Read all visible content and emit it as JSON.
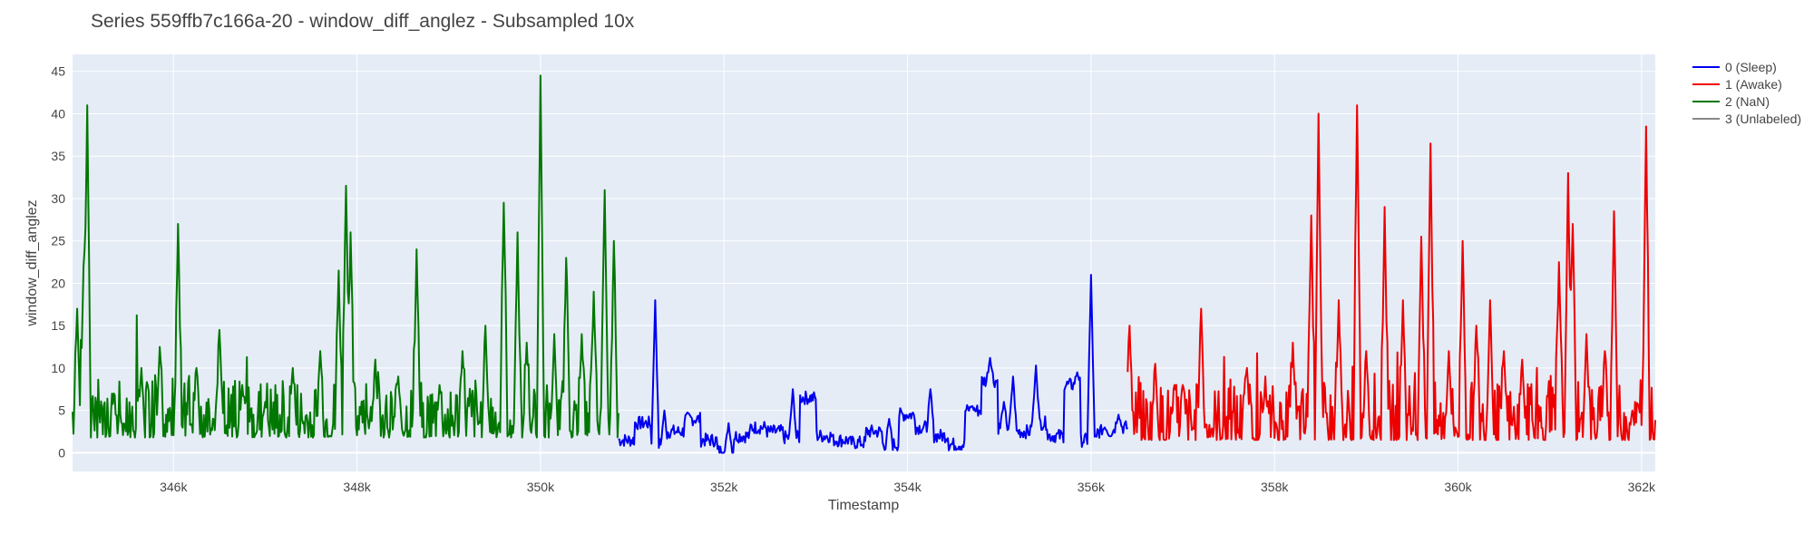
{
  "chart_data": {
    "type": "line",
    "title": "Series 559ffb7c166a-20 - window_diff_anglez - Subsampled 10x",
    "xlabel": "Timestamp",
    "ylabel": "window_diff_anglez",
    "xlim": [
      344900,
      362150
    ],
    "ylim": [
      -2.2,
      47
    ],
    "x_ticks": [
      346000,
      348000,
      350000,
      352000,
      354000,
      356000,
      358000,
      360000,
      362000
    ],
    "x_tick_labels": [
      "346k",
      "348k",
      "350k",
      "352k",
      "354k",
      "356k",
      "358k",
      "360k",
      "362k"
    ],
    "y_ticks": [
      0,
      5,
      10,
      15,
      20,
      25,
      30,
      35,
      40,
      45
    ],
    "y_tick_labels": [
      "0",
      "5",
      "10",
      "15",
      "20",
      "25",
      "30",
      "35",
      "40",
      "45"
    ],
    "grid": true,
    "legend_position": "right",
    "series": [
      {
        "name": "0 (Sleep)",
        "color": "#0000ee",
        "x_range": [
          350850,
          356400
        ],
        "baseline": 2.5,
        "peaks": [
          [
            351250,
            18
          ],
          [
            351350,
            5
          ],
          [
            352050,
            3.5
          ],
          [
            352750,
            7.5
          ],
          [
            353800,
            4
          ],
          [
            354250,
            7.5
          ],
          [
            354700,
            5.5
          ],
          [
            354900,
            11.2
          ],
          [
            355050,
            6
          ],
          [
            355150,
            9
          ],
          [
            355400,
            10.3
          ],
          [
            355850,
            9.5
          ],
          [
            356000,
            21
          ],
          [
            356150,
            3
          ],
          [
            356300,
            4.5
          ]
        ]
      },
      {
        "name": "1 (Awake)",
        "color": "#ee0000",
        "x_range": [
          356400,
          362150
        ],
        "baseline": 1.5,
        "peaks": [
          [
            356420,
            15
          ],
          [
            356700,
            10.5
          ],
          [
            357000,
            8
          ],
          [
            357200,
            17
          ],
          [
            357700,
            10
          ],
          [
            357900,
            8
          ],
          [
            358200,
            13
          ],
          [
            358400,
            28
          ],
          [
            358480,
            40
          ],
          [
            358700,
            18
          ],
          [
            358900,
            41
          ],
          [
            359000,
            12
          ],
          [
            359200,
            29
          ],
          [
            359400,
            18
          ],
          [
            359600,
            25.5
          ],
          [
            359700,
            36.5
          ],
          [
            359900,
            12
          ],
          [
            360050,
            25
          ],
          [
            360200,
            15
          ],
          [
            360350,
            18
          ],
          [
            360500,
            12
          ],
          [
            360700,
            11
          ],
          [
            361100,
            22.5
          ],
          [
            361200,
            33
          ],
          [
            361250,
            27
          ],
          [
            361400,
            14
          ],
          [
            361600,
            12
          ],
          [
            361700,
            28.5
          ],
          [
            361900,
            5
          ],
          [
            362050,
            38.5
          ]
        ]
      },
      {
        "name": "2 (NaN)",
        "color": "#007700",
        "x_range": [
          344900,
          350850
        ],
        "baseline": 1.8,
        "peaks": [
          [
            344950,
            17
          ],
          [
            345020,
            22
          ],
          [
            345060,
            41
          ],
          [
            345350,
            7
          ],
          [
            345650,
            10
          ],
          [
            345850,
            12.5
          ],
          [
            346050,
            27
          ],
          [
            346250,
            10
          ],
          [
            346500,
            14.5
          ],
          [
            346750,
            8
          ],
          [
            347000,
            6
          ],
          [
            347300,
            10
          ],
          [
            347600,
            12
          ],
          [
            347800,
            21.5
          ],
          [
            347880,
            31.5
          ],
          [
            347930,
            26
          ],
          [
            348200,
            11
          ],
          [
            348450,
            9
          ],
          [
            348650,
            24
          ],
          [
            348900,
            8
          ],
          [
            349150,
            12
          ],
          [
            349400,
            15
          ],
          [
            349600,
            29.5
          ],
          [
            349750,
            26
          ],
          [
            349850,
            13
          ],
          [
            350000,
            44.5
          ],
          [
            350150,
            14
          ],
          [
            350280,
            23
          ],
          [
            350450,
            14
          ],
          [
            350580,
            19
          ],
          [
            350700,
            31
          ],
          [
            350800,
            25
          ]
        ]
      },
      {
        "name": "3 (Unlabeled)",
        "color": "#888888",
        "x_range": [],
        "baseline": 0,
        "peaks": []
      }
    ]
  }
}
